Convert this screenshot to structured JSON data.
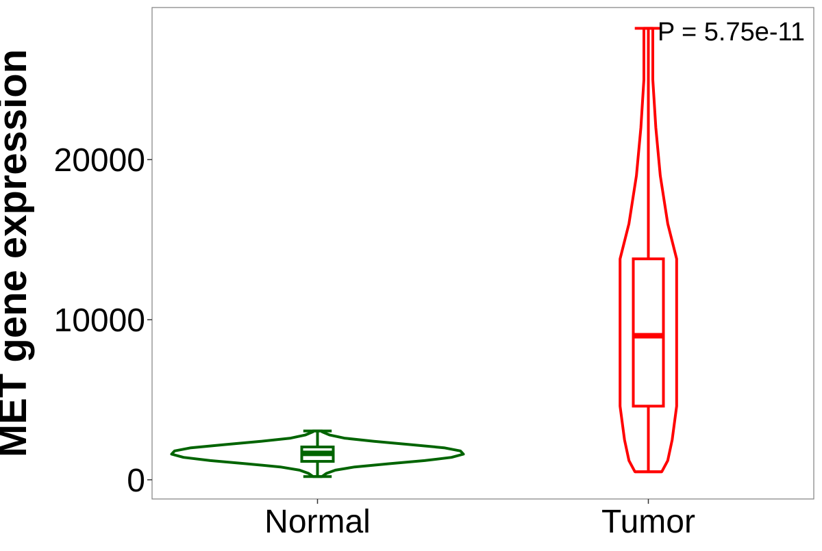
{
  "chart_data": {
    "type": "violin",
    "ylabel": "MET gene expression",
    "xlabel": "",
    "categories": [
      "Normal",
      "Tumor"
    ],
    "ylim": [
      -1200,
      29500
    ],
    "yticks": [
      0,
      10000,
      20000
    ],
    "ytick_labels": [
      "0",
      "10000",
      "20000"
    ],
    "grid": false,
    "legend": "none",
    "annotation": {
      "text": "P = 5.75e-11",
      "position": "top-right"
    },
    "series": [
      {
        "name": "Normal",
        "color": "#006400",
        "box": {
          "min": 200,
          "q1": 1150,
          "median": 1650,
          "q3": 2050,
          "max": 3050
        },
        "density": [
          [
            200,
            0.03
          ],
          [
            400,
            0.06
          ],
          [
            600,
            0.12
          ],
          [
            800,
            0.25
          ],
          [
            1000,
            0.48
          ],
          [
            1200,
            0.72
          ],
          [
            1400,
            0.9
          ],
          [
            1600,
            0.98
          ],
          [
            1800,
            0.96
          ],
          [
            2000,
            0.85
          ],
          [
            2200,
            0.62
          ],
          [
            2400,
            0.38
          ],
          [
            2600,
            0.18
          ],
          [
            2800,
            0.08
          ],
          [
            3000,
            0.03
          ],
          [
            3050,
            0.03
          ]
        ]
      },
      {
        "name": "Tumor",
        "color": "#ff0000",
        "box": {
          "min": 500,
          "q1": 4600,
          "median": 9000,
          "q3": 13800,
          "max": 28200
        },
        "density": [
          [
            500,
            0.09
          ],
          [
            1200,
            0.13
          ],
          [
            2500,
            0.16
          ],
          [
            4600,
            0.19
          ],
          [
            9000,
            0.19
          ],
          [
            13800,
            0.19
          ],
          [
            16000,
            0.13
          ],
          [
            19000,
            0.08
          ],
          [
            22000,
            0.05
          ],
          [
            25000,
            0.03
          ],
          [
            28200,
            0.03
          ]
        ]
      }
    ]
  }
}
